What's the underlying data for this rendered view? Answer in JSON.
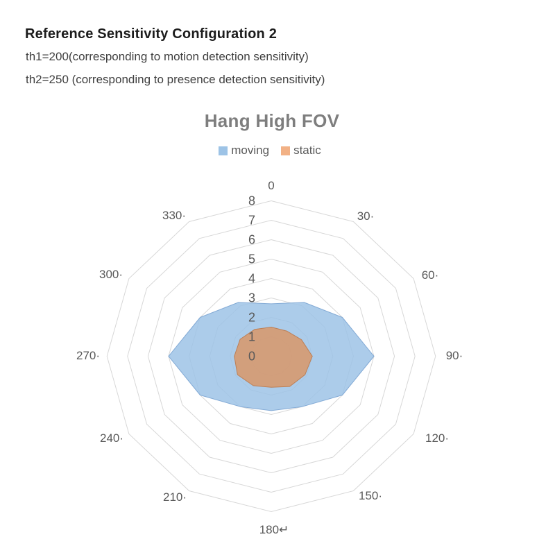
{
  "header": {
    "title": "Reference Sensitivity Configuration 2",
    "line1": "th1=200(corresponding to motion detection sensitivity)",
    "line2": "th2=250 (corresponding to presence detection sensitivity)"
  },
  "chart": {
    "title": "Hang High FOV",
    "legend": [
      {
        "label": "moving",
        "color": "#9DC3E6"
      },
      {
        "label": "static",
        "color": "#F2B185"
      }
    ]
  },
  "chart_data": {
    "type": "radar",
    "title": "Hang High FOV",
    "categories": [
      "0",
      "30",
      "60",
      "90",
      "120",
      "150",
      "180",
      "210",
      "240",
      "270",
      "300",
      "330"
    ],
    "category_display_labels": [
      "0",
      "30·",
      "60·",
      "90·",
      "120·",
      "150·",
      "180↵",
      "210·",
      "240·",
      "270·",
      "300·",
      "330·"
    ],
    "series": [
      {
        "name": "moving",
        "fill": "#9EC3E6",
        "values": [
          2.7,
          3.2,
          4.0,
          5.0,
          4.0,
          3.0,
          2.8,
          3.0,
          4.0,
          5.0,
          4.0,
          3.2
        ]
      },
      {
        "name": "static",
        "fill": "#D89669",
        "values": [
          1.5,
          1.5,
          1.7,
          2.0,
          1.9,
          1.8,
          1.6,
          1.75,
          1.9,
          1.8,
          1.75,
          1.6
        ]
      }
    ],
    "r_axis": {
      "min": 0,
      "max": 8,
      "tick_labels": [
        "0",
        "1",
        "2",
        "3",
        "4",
        "5",
        "6",
        "7",
        "8"
      ]
    },
    "grid": true,
    "grid_color": "#D7D7D7",
    "legend_position": "top",
    "label_color": "#595959"
  }
}
